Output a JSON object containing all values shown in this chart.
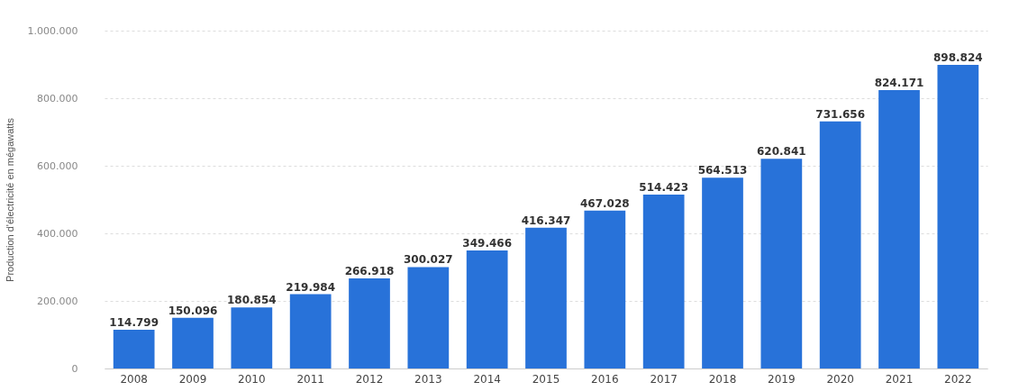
{
  "chart_data": {
    "type": "bar",
    "ylabel": "Production d'électricité en mégawatts",
    "categories": [
      "2008",
      "2009",
      "2010",
      "2011",
      "2012",
      "2013",
      "2014",
      "2015",
      "2016",
      "2017",
      "2018",
      "2019",
      "2020",
      "2021",
      "2022"
    ],
    "values": [
      114799,
      150096,
      180854,
      219984,
      266918,
      300027,
      349466,
      416347,
      467028,
      514423,
      564513,
      620841,
      731656,
      824171,
      898824
    ],
    "value_labels": [
      "114.799",
      "150.096",
      "180.854",
      "219.984",
      "266.918",
      "300.027",
      "349.466",
      "416.347",
      "467.028",
      "514.423",
      "564.513",
      "620.841",
      "731.656",
      "824.171",
      "898.824"
    ],
    "color": "#2872d9",
    "ylim": [
      0,
      1000000
    ],
    "yticks": [
      {
        "value": 0,
        "label": "0"
      },
      {
        "value": 200000,
        "label": "200.000"
      },
      {
        "value": 400000,
        "label": "400.000"
      },
      {
        "value": 600000,
        "label": "600.000"
      },
      {
        "value": 800000,
        "label": "800.000"
      },
      {
        "value": 1000000,
        "label": "1.000.000"
      }
    ],
    "grid": "y"
  }
}
